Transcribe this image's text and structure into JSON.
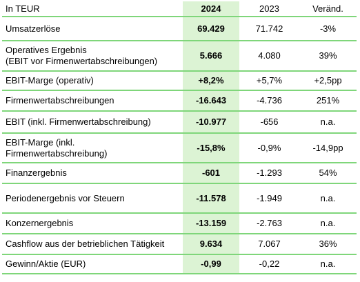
{
  "header": {
    "label": "In TEUR",
    "col_2024": "2024",
    "col_2023": "2023",
    "col_change": "Veränd."
  },
  "rows": [
    {
      "label_lines": [
        "Umsatzerlöse"
      ],
      "v2024": "69.429",
      "v2023": "71.742",
      "change": "-3%"
    },
    {
      "label_lines": [
        "Operatives Ergebnis",
        "(EBIT vor Firmenwertabschreibungen)"
      ],
      "v2024": "5.666",
      "v2023": "4.080",
      "change": "39%"
    },
    {
      "label_lines": [
        "EBIT-Marge (operativ)"
      ],
      "v2024": "+8,2%",
      "v2023": "+5,7%",
      "change": "+2,5pp"
    },
    {
      "label_lines": [
        "Firmenwertabschreibungen"
      ],
      "v2024": "-16.643",
      "v2023": "-4.736",
      "change": "251%"
    },
    {
      "label_lines": [
        "EBIT (inkl. Firmenwertabschreibung)"
      ],
      "v2024": "-10.977",
      "v2023": "-656",
      "change": "n.a."
    },
    {
      "label_lines": [
        "EBIT-Marge (inkl.",
        "Firmenwertabschreibung)"
      ],
      "v2024": "-15,8%",
      "v2023": "-0,9%",
      "change": "-14,9pp"
    },
    {
      "label_lines": [
        "Finanzergebnis"
      ],
      "v2024": "-601",
      "v2023": "-1.293",
      "change": "54%"
    },
    {
      "label_lines": [
        "Periodenergebnis vor Steuern"
      ],
      "v2024": "-11.578",
      "v2023": "-1.949",
      "change": "n.a."
    },
    {
      "label_lines": [
        "Konzernergebnis"
      ],
      "v2024": "-13.159",
      "v2023": "-2.763",
      "change": "n.a."
    },
    {
      "label_lines": [
        "Cashflow aus der betrieblichen Tätigkeit"
      ],
      "v2024": "9.634",
      "v2023": "7.067",
      "change": "36%"
    },
    {
      "label_lines": [
        "Gewinn/Aktie (EUR)"
      ],
      "v2024": "-0,99",
      "v2023": "-0,22",
      "change": "n.a."
    }
  ]
}
